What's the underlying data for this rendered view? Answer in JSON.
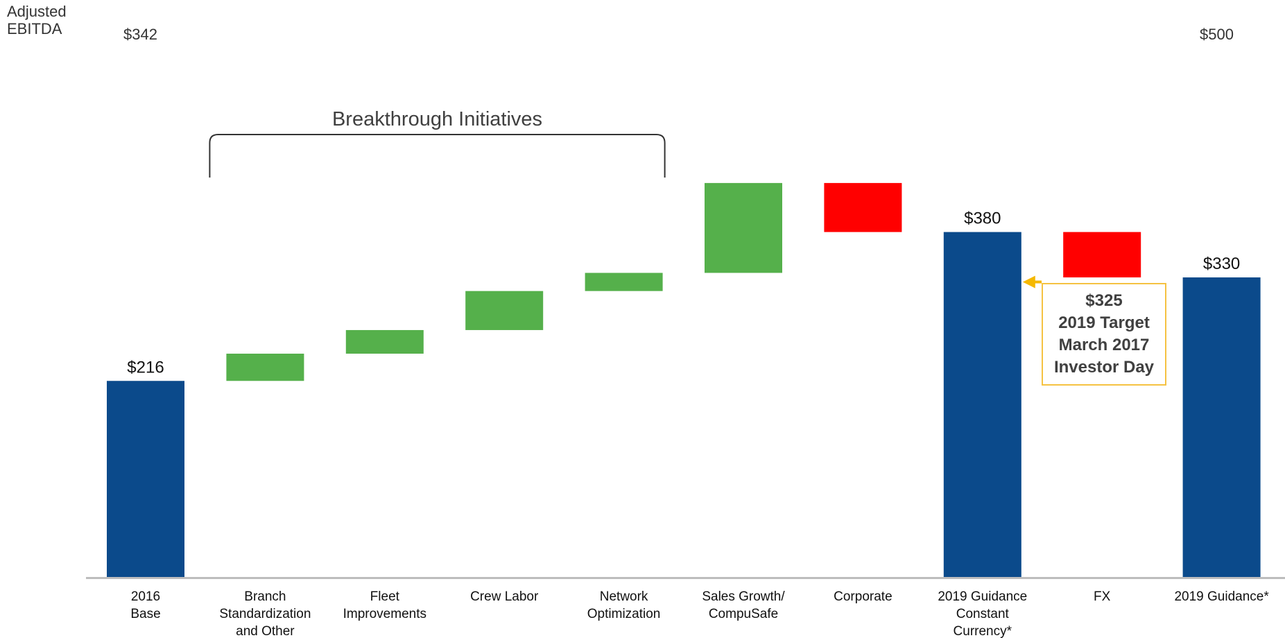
{
  "chart_data": {
    "type": "bar",
    "subtype": "waterfall",
    "ylabel": "Adjusted\nEBITDA",
    "ylim": [
      342,
      500
    ],
    "ylim_labels": [
      "$342",
      "$500"
    ],
    "categories": [
      [
        "2016",
        "Base"
      ],
      [
        "Branch",
        "Standardization",
        "and Other"
      ],
      [
        "Fleet",
        "Improvements"
      ],
      [
        "Crew Labor"
      ],
      [
        "Network",
        "Optimization"
      ],
      [
        "Sales Growth/",
        "CompuSafe"
      ],
      [
        "Corporate"
      ],
      [
        "2019 Guidance",
        "Constant",
        "Currency*"
      ],
      [
        "FX"
      ],
      [
        "2019 Guidance*"
      ]
    ],
    "bars": [
      {
        "kind": "total",
        "start": 0,
        "end": 216,
        "label": "$216"
      },
      {
        "kind": "increase",
        "start": 216,
        "end": 246
      },
      {
        "kind": "increase",
        "start": 246,
        "end": 272
      },
      {
        "kind": "increase",
        "start": 272,
        "end": 315
      },
      {
        "kind": "increase",
        "start": 315,
        "end": 335
      },
      {
        "kind": "increase",
        "start": 335,
        "end": 434
      },
      {
        "kind": "decrease",
        "start": 434,
        "end": 380
      },
      {
        "kind": "total",
        "start": 0,
        "end": 380,
        "label": "$380"
      },
      {
        "kind": "decrease",
        "start": 380,
        "end": 330
      },
      {
        "kind": "total",
        "start": 0,
        "end": 330,
        "label": "$330"
      }
    ],
    "bracket": {
      "label": "Breakthrough Initiatives",
      "from": 1,
      "to": 4
    },
    "annotation": {
      "lines": [
        "$325",
        "2019 Target",
        "March 2017",
        "Investor Day"
      ],
      "value": 325,
      "points_to": 7
    },
    "colors": {
      "total": "#0b4a8b",
      "increase": "#55b04b",
      "decrease": "#ff0000",
      "axis": "#bdbdbd",
      "callout": "#f5b800"
    }
  }
}
